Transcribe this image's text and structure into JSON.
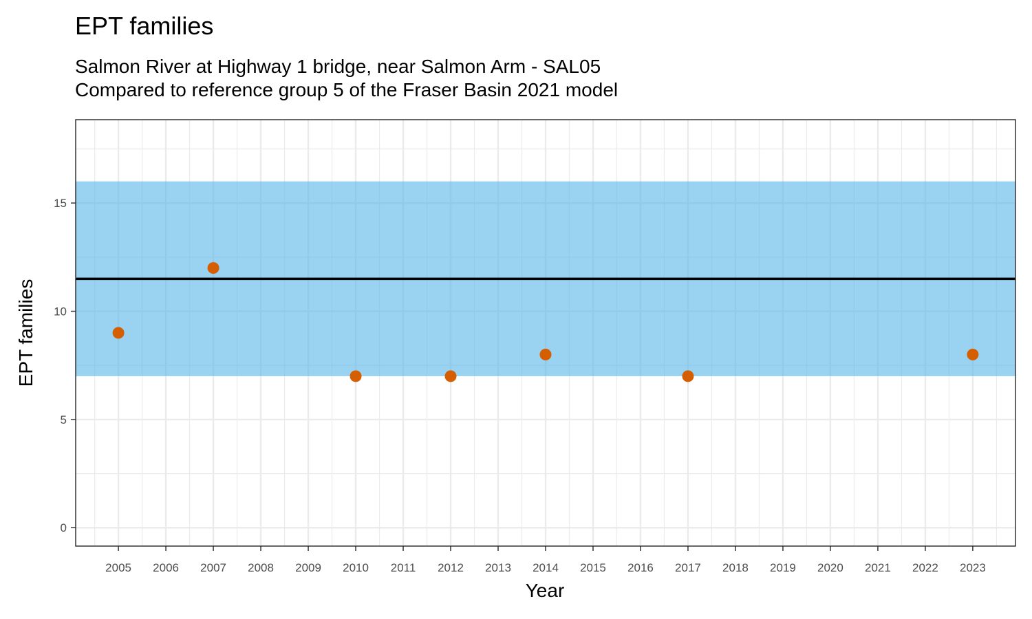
{
  "chart_data": {
    "type": "scatter",
    "title": "EPT families",
    "subtitle_lines": [
      "Salmon River at Highway 1 bridge, near Salmon Arm - SAL05",
      "Compared to reference group 5 of the Fraser Basin 2021 model"
    ],
    "xlabel": "Year",
    "ylabel": "EPT families",
    "x_ticks": [
      "2005",
      "2006",
      "2007",
      "2008",
      "2009",
      "2010",
      "2011",
      "2012",
      "2013",
      "2014",
      "2015",
      "2016",
      "2017",
      "2018",
      "2019",
      "2020",
      "2021",
      "2022",
      "2023"
    ],
    "y_ticks": [
      0,
      5,
      10,
      15
    ],
    "xlim": [
      2004.1,
      2023.9
    ],
    "ylim": [
      -0.85,
      18.85
    ],
    "grid": true,
    "points": [
      {
        "x": 2005,
        "y": 9
      },
      {
        "x": 2007,
        "y": 12
      },
      {
        "x": 2010,
        "y": 7
      },
      {
        "x": 2012,
        "y": 7
      },
      {
        "x": 2014,
        "y": 8
      },
      {
        "x": 2017,
        "y": 7
      },
      {
        "x": 2023,
        "y": 8
      }
    ],
    "reference_band": {
      "low": 7,
      "high": 16
    },
    "reference_line": 11.5,
    "colors": {
      "points": "#D55E00",
      "band": "#56B4E9",
      "reference_line": "#000000",
      "grid": "#EBEBEB",
      "panel_border": "#333333"
    }
  }
}
